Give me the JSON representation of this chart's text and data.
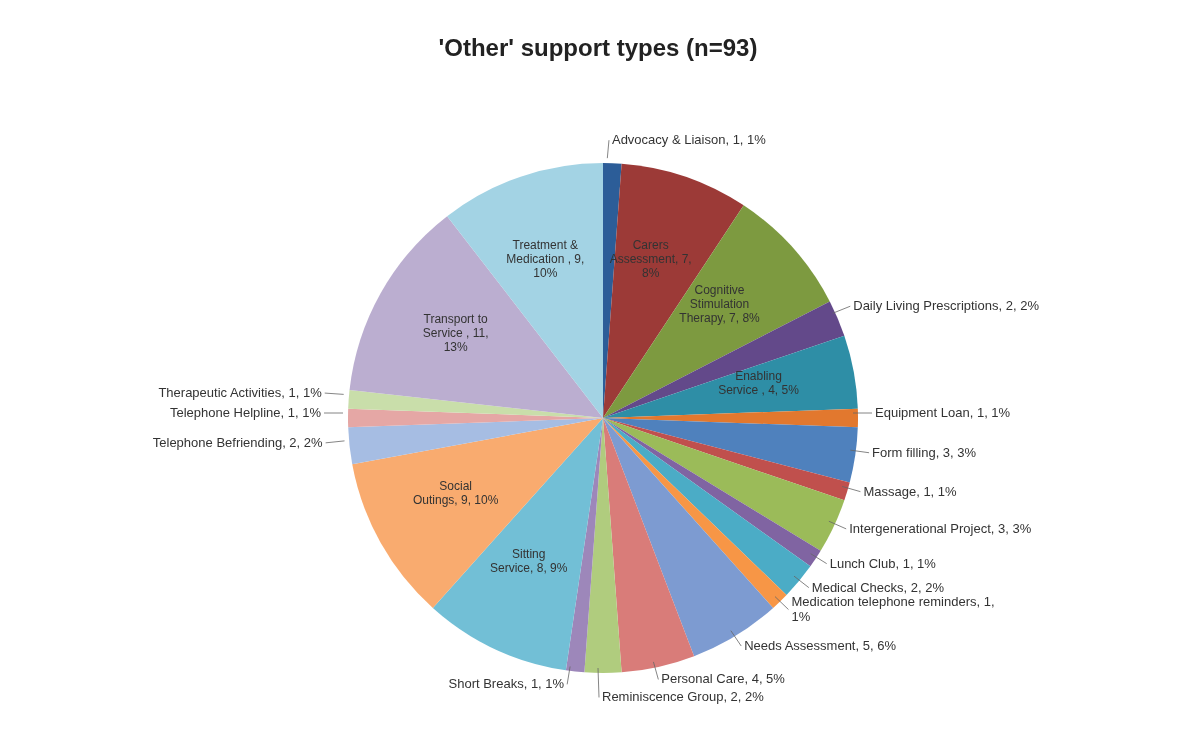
{
  "chart_data": {
    "type": "pie",
    "title": "'Other' support types (n=93)",
    "categories": [
      "Advocacy & Liaison",
      "Carers Assessment",
      "Cognitive Stimulation Therapy",
      "Daily Living Prescriptions",
      "Enabling Service ",
      "Equipment Loan",
      "Form filling",
      "Massage",
      "Intergenerational Project",
      "Lunch Club",
      "Medical Checks",
      "Medication telephone reminders",
      "Needs Assessment",
      "Personal Care",
      "Reminiscence Group",
      "Short Breaks",
      "Sitting Service",
      "Social Outings",
      "Telephone Befriending",
      "Telephone Helpline",
      "Therapeutic Activities",
      "Transport to Service ",
      "Treatment & Medication "
    ],
    "values": [
      1,
      7,
      7,
      2,
      4,
      1,
      3,
      1,
      3,
      1,
      2,
      1,
      5,
      4,
      2,
      1,
      8,
      9,
      2,
      1,
      1,
      11,
      9
    ],
    "value_labels": [
      "1, 1%",
      "7, 8%",
      "7, 8%",
      "2, 2%",
      "4, 5%",
      "1, 1%",
      "3, 3%",
      "1, 1%",
      "3, 3%",
      "1, 1%",
      "2, 2%",
      "1, 1%",
      "5, 6%",
      "4, 5%",
      "2, 2%",
      "1, 1%",
      "8, 9%",
      "9, 10%",
      "2, 2%",
      "1, 1%",
      "1, 1%",
      "11, 13%",
      "9, 10%"
    ],
    "colors": [
      "#2c5d98",
      "#9c3a37",
      "#7d9a40",
      "#63498a",
      "#2e8ea6",
      "#e2782e",
      "#4f81bd",
      "#c0504d",
      "#9bbb59",
      "#8064a2",
      "#4bacc6",
      "#f79646",
      "#7d9bd1",
      "#d97c79",
      "#b0cc7e",
      "#9d87ba",
      "#72bfd6",
      "#f9ab6f",
      "#a6bde3",
      "#e5a7a5",
      "#c9deaa",
      "#bbaed0",
      "#a3d3e4"
    ],
    "legend": false
  }
}
